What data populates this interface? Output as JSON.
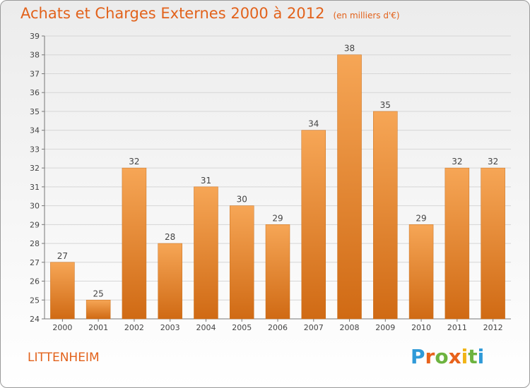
{
  "header": {
    "title": "Achats et Charges Externes 2000 à 2012",
    "unit": "(en milliers d'€)"
  },
  "commune": "LITTENHEIM",
  "logo": {
    "letters": [
      "P",
      "r",
      "o",
      "x",
      "i",
      "t",
      "i"
    ],
    "colors": [
      "#2f9ad8",
      "#e8621b",
      "#6db33f",
      "#e8621b",
      "#f1b416",
      "#6db33f",
      "#2f9ad8"
    ]
  },
  "chart_data": {
    "type": "bar",
    "title": "Achats et Charges Externes 2000 à 2012",
    "categories": [
      "2000",
      "2001",
      "2002",
      "2003",
      "2004",
      "2005",
      "2006",
      "2007",
      "2008",
      "2009",
      "2010",
      "2011",
      "2012"
    ],
    "values": [
      27,
      25,
      32,
      28,
      31,
      30,
      29,
      34,
      38,
      35,
      29,
      32,
      32
    ],
    "ylim": [
      24,
      39
    ],
    "yticks": [
      24,
      25,
      26,
      27,
      28,
      29,
      30,
      31,
      32,
      33,
      34,
      35,
      36,
      37,
      38,
      39
    ],
    "grid": true,
    "bar_color_top": "#f6a656",
    "bar_color_bottom": "#d06a14"
  }
}
